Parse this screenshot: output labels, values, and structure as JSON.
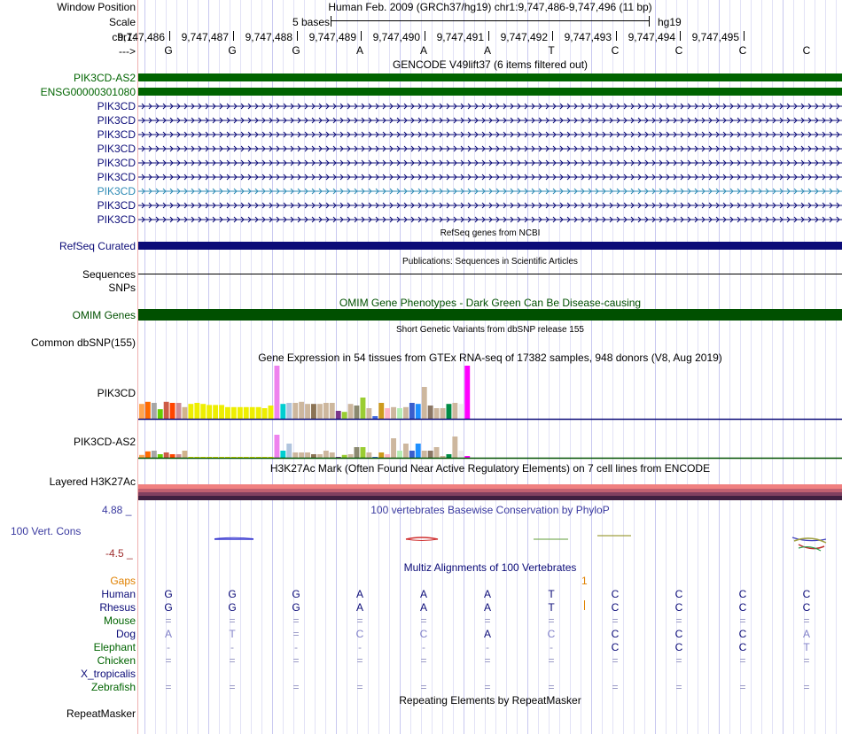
{
  "header": {
    "window_position_label": "Window Position",
    "scale_label": "Scale",
    "chrom_label": "chr1:",
    "arrow_label": "--->",
    "title": "Human Feb. 2009 (GRCh37/hg19)   chr1:9,747,486-9,747,496 (11 bp)",
    "scale_text": "5 bases",
    "assembly": "hg19",
    "positions": [
      "9,747,486",
      "9,747,487",
      "9,747,488",
      "9,747,489",
      "9,747,490",
      "9,747,491",
      "9,747,492",
      "9,747,493",
      "9,747,494",
      "9,747,495"
    ],
    "bases": [
      "G",
      "G",
      "G",
      "A",
      "A",
      "A",
      "T",
      "C",
      "C",
      "C",
      "C"
    ]
  },
  "gencode": {
    "title": "GENCODE V49lift37 (6 items filtered out)",
    "items": [
      {
        "name": "PIK3CD-AS2",
        "color": "#006400",
        "style": "solid"
      },
      {
        "name": "ENSG00000301080",
        "color": "#006400",
        "style": "solid"
      },
      {
        "name": "PIK3CD",
        "color": "#0c0c78",
        "style": "intron"
      },
      {
        "name": "PIK3CD",
        "color": "#0c0c78",
        "style": "intron"
      },
      {
        "name": "PIK3CD",
        "color": "#0c0c78",
        "style": "intron"
      },
      {
        "name": "PIK3CD",
        "color": "#0c0c78",
        "style": "intron"
      },
      {
        "name": "PIK3CD",
        "color": "#0c0c78",
        "style": "intron"
      },
      {
        "name": "PIK3CD",
        "color": "#0c0c78",
        "style": "intron"
      },
      {
        "name": "PIK3CD",
        "color": "#2e8bb5",
        "style": "intron"
      },
      {
        "name": "PIK3CD",
        "color": "#0c0c78",
        "style": "intron"
      },
      {
        "name": "PIK3CD",
        "color": "#0c0c78",
        "style": "intron"
      }
    ]
  },
  "refseq": {
    "title": "RefSeq genes from NCBI",
    "label": "RefSeq Curated",
    "color": "#0c0c78"
  },
  "publications": {
    "title": "Publications: Sequences in Scientific Articles",
    "sequences_label": "Sequences",
    "snps_label": "SNPs"
  },
  "omim": {
    "title": "OMIM Gene Phenotypes - Dark Green Can Be Disease-causing",
    "label": "OMIM Genes",
    "color": "#005000"
  },
  "dbsnp": {
    "title": "Short Genetic Variants from dbSNP release 155",
    "label": "Common dbSNP(155)"
  },
  "gtex": {
    "title": "Gene Expression in 54 tissues from GTEx RNA-seq of 17382 samples, 948 donors (V8, Aug 2019)",
    "tracks": [
      {
        "label": "PIK3CD",
        "values": [
          0.28,
          0.32,
          0.3,
          0.18,
          0.32,
          0.3,
          0.3,
          0.22,
          0.28,
          0.3,
          0.28,
          0.26,
          0.26,
          0.26,
          0.22,
          0.22,
          0.22,
          0.22,
          0.22,
          0.22,
          0.2,
          0.25,
          1.0,
          0.28,
          0.3,
          0.3,
          0.32,
          0.28,
          0.28,
          0.28,
          0.3,
          0.3,
          0.15,
          0.13,
          0.28,
          0.25,
          0.4,
          0.2,
          0.05,
          0.3,
          0.2,
          0.22,
          0.2,
          0.22,
          0.3,
          0.28,
          0.6,
          0.25,
          0.2,
          0.2,
          0.28,
          0.3,
          0.28,
          1.0
        ]
      },
      {
        "label": "PIK3CD-AS2",
        "values": [
          0.08,
          0.18,
          0.2,
          0.1,
          0.15,
          0.1,
          0.1,
          0.2,
          0.02,
          0.02,
          0.02,
          0.02,
          0.02,
          0.02,
          0.02,
          0.02,
          0.02,
          0.02,
          0.02,
          0.02,
          0.02,
          0.02,
          0.65,
          0.2,
          0.4,
          0.15,
          0.15,
          0.15,
          0.1,
          0.1,
          0.2,
          0.15,
          0.02,
          0.08,
          0.1,
          0.3,
          0.3,
          0.15,
          0.02,
          0.15,
          0.1,
          0.55,
          0.2,
          0.4,
          0.2,
          0.4,
          0.2,
          0.2,
          0.3,
          0.05,
          0.1,
          0.6,
          0.2,
          0.05
        ]
      }
    ],
    "colors": [
      "#ffa54f",
      "#ff6a00",
      "#a6a6a6",
      "#66cd00",
      "#cd5b45",
      "#ff4500",
      "#cd8c95",
      "#d2b48c",
      "#eeee00",
      "#eeee00",
      "#eeee00",
      "#eeee00",
      "#eeee00",
      "#eeee00",
      "#eeee00",
      "#eeee00",
      "#eeee00",
      "#eeee00",
      "#eeee00",
      "#eeee00",
      "#eeee00",
      "#eeee00",
      "#ee82ee",
      "#00ced1",
      "#b0c4de",
      "#cdb79e",
      "#cdb79e",
      "#cdb79e",
      "#8b7355",
      "#cdb79e",
      "#cdb79e",
      "#cdb79e",
      "#7a378b",
      "#9acd32",
      "#cdb79e",
      "#8b8970",
      "#9acd32",
      "#cdb79e",
      "#4169e1",
      "#cd9b1d",
      "#ffb5c5",
      "#cdb79e",
      "#b4eeb4",
      "#cdb79e",
      "#3a5fcd",
      "#1e90ff",
      "#cdb79e",
      "#8b7765",
      "#cdb79e",
      "#cdb79e",
      "#008b45",
      "#cdb79e",
      "#eeeeee",
      "#ff00ff"
    ]
  },
  "h3k27ac": {
    "title": "H3K27Ac Mark (Often Found Near Active Regulatory Elements) on 7 cell lines from ENCODE",
    "label": "Layered H3K27Ac"
  },
  "conservation": {
    "title": "100 vertebrates Basewise Conservation by PhyloP",
    "label": "100 Vert. Cons",
    "max_label": "4.88 _",
    "min_label": "-4.5 _"
  },
  "multiz": {
    "title": "Multiz Alignments of 100 Vertebrates",
    "gaps_label": "Gaps",
    "gap_marker": "1",
    "species": [
      {
        "name": "Human",
        "color": "#0c0c78",
        "bases": [
          "G",
          "G",
          "G",
          "A",
          "A",
          "A",
          "T",
          "C",
          "C",
          "C",
          "C"
        ],
        "dim": false
      },
      {
        "name": "Rhesus",
        "color": "#0c0c78",
        "bases": [
          "G",
          "G",
          "G",
          "A",
          "A",
          "A",
          "T",
          "C",
          "C",
          "C",
          "C"
        ],
        "dim": false
      },
      {
        "name": "Mouse",
        "color": "#006400",
        "bases": [
          "=",
          "=",
          "=",
          "=",
          "=",
          "=",
          "=",
          "=",
          "=",
          "=",
          "="
        ],
        "dim": true
      },
      {
        "name": "Dog",
        "color": "#0c0c78",
        "bases": [
          "A",
          "T",
          "=",
          "C",
          "C",
          "A",
          "C",
          "C",
          "C",
          "C",
          "A"
        ],
        "dim": true
      },
      {
        "name": "Elephant",
        "color": "#006400",
        "bases": [
          "-",
          "-",
          "-",
          "-",
          "-",
          "-",
          "-",
          "C",
          "C",
          "C",
          "T"
        ],
        "dim": true
      },
      {
        "name": "Chicken",
        "color": "#006400",
        "bases": [
          "=",
          "=",
          "=",
          "=",
          "=",
          "=",
          "=",
          "=",
          "=",
          "=",
          "="
        ],
        "dim": true
      },
      {
        "name": "X_tropicalis",
        "color": "#0c0c78",
        "bases": [
          "",
          "",
          "",
          "",
          "",
          "",
          "",
          "",
          "",
          "",
          ""
        ],
        "dim": true
      },
      {
        "name": "Zebrafish",
        "color": "#006400",
        "bases": [
          "=",
          "=",
          "=",
          "=",
          "=",
          "=",
          "=",
          "=",
          "=",
          "=",
          "="
        ],
        "dim": true
      }
    ]
  },
  "repeatmasker": {
    "title": "Repeating Elements by RepeatMasker",
    "label": "RepeatMasker"
  }
}
